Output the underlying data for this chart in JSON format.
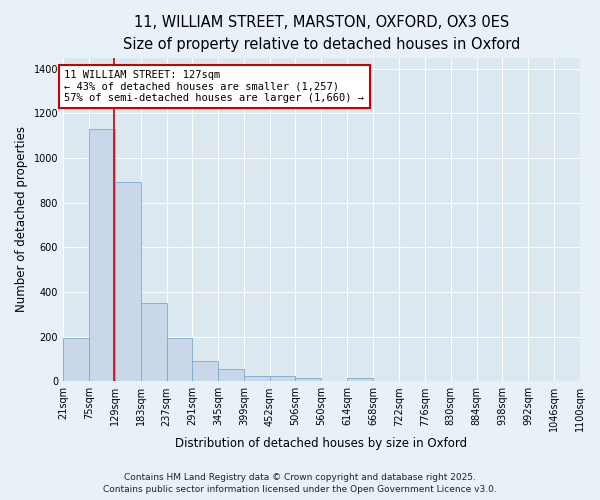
{
  "title1": "11, WILLIAM STREET, MARSTON, OXFORD, OX3 0ES",
  "title2": "Size of property relative to detached houses in Oxford",
  "xlabel": "Distribution of detached houses by size in Oxford",
  "ylabel": "Number of detached properties",
  "bar_color": "#c8d8ea",
  "bar_edge_color": "#7aaac8",
  "background_color": "#dce8f0",
  "fig_background_color": "#e8f0f8",
  "grid_color": "#ffffff",
  "annotation_box_color": "#cc0000",
  "vline_color": "#cc0000",
  "bin_edges": [
    21,
    75,
    129,
    183,
    237,
    291,
    345,
    399,
    452,
    506,
    560,
    614,
    668,
    722,
    776,
    830,
    884,
    938,
    992,
    1046,
    1100
  ],
  "bin_labels": [
    "21sqm",
    "75sqm",
    "129sqm",
    "183sqm",
    "237sqm",
    "291sqm",
    "345sqm",
    "399sqm",
    "452sqm",
    "506sqm",
    "560sqm",
    "614sqm",
    "668sqm",
    "722sqm",
    "776sqm",
    "830sqm",
    "884sqm",
    "938sqm",
    "992sqm",
    "1046sqm",
    "1100sqm"
  ],
  "values": [
    193,
    1130,
    893,
    352,
    193,
    91,
    55,
    25,
    22,
    14,
    0,
    13,
    0,
    0,
    0,
    0,
    0,
    0,
    0,
    0
  ],
  "ylim": [
    0,
    1450
  ],
  "yticks": [
    0,
    200,
    400,
    600,
    800,
    1000,
    1200,
    1400
  ],
  "property_size": 127,
  "annotation_title": "11 WILLIAM STREET: 127sqm",
  "annotation_line1": "← 43% of detached houses are smaller (1,257)",
  "annotation_line2": "57% of semi-detached houses are larger (1,660) →",
  "footer1": "Contains HM Land Registry data © Crown copyright and database right 2025.",
  "footer2": "Contains public sector information licensed under the Open Government Licence v3.0.",
  "title_fontsize": 10.5,
  "subtitle_fontsize": 9.5,
  "axis_label_fontsize": 8.5,
  "tick_fontsize": 7,
  "annotation_fontsize": 7.5,
  "footer_fontsize": 6.5
}
